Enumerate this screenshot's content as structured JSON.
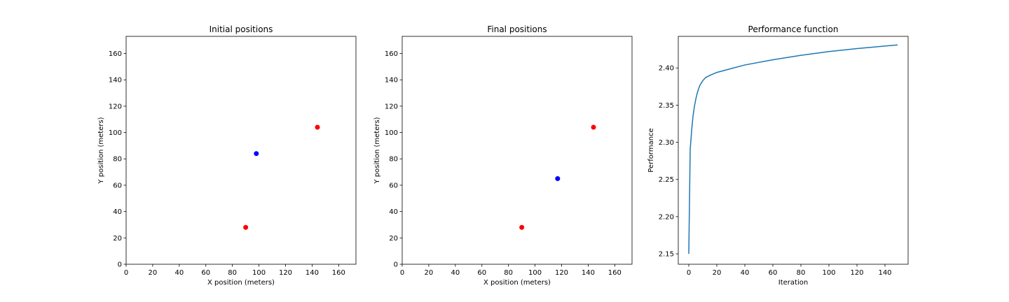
{
  "chart_data": [
    {
      "type": "scatter",
      "title": "Initial positions",
      "xlabel": "X position (meters)",
      "ylabel": "Y position (meters)",
      "xlim": [
        0,
        173
      ],
      "ylim": [
        0,
        173
      ],
      "xticks": [
        0,
        20,
        40,
        60,
        80,
        100,
        120,
        140,
        160
      ],
      "yticks": [
        0,
        20,
        40,
        60,
        80,
        100,
        120,
        140,
        160
      ],
      "points": [
        {
          "x": 90,
          "y": 28,
          "color": "#ff0000"
        },
        {
          "x": 144,
          "y": 104,
          "color": "#ff0000"
        },
        {
          "x": 98,
          "y": 84,
          "color": "#0000ff"
        }
      ]
    },
    {
      "type": "scatter",
      "title": "Final positions",
      "xlabel": "X position (meters)",
      "ylabel": "Y position (meters)",
      "xlim": [
        0,
        173
      ],
      "ylim": [
        0,
        173
      ],
      "xticks": [
        0,
        20,
        40,
        60,
        80,
        100,
        120,
        140,
        160
      ],
      "yticks": [
        0,
        20,
        40,
        60,
        80,
        100,
        120,
        140,
        160
      ],
      "points": [
        {
          "x": 90,
          "y": 28,
          "color": "#ff0000"
        },
        {
          "x": 144,
          "y": 104,
          "color": "#ff0000"
        },
        {
          "x": 117,
          "y": 65,
          "color": "#0000ff"
        }
      ]
    },
    {
      "type": "line",
      "title": "Performance function",
      "xlabel": "Iteration",
      "ylabel": "Performance",
      "xlim": [
        -7.5,
        156.5
      ],
      "ylim": [
        2.136,
        2.4425
      ],
      "xticks": [
        0,
        20,
        40,
        60,
        80,
        100,
        120,
        140
      ],
      "yticks": [
        2.15,
        2.2,
        2.25,
        2.3,
        2.35,
        2.4
      ],
      "ytick_labels": [
        "2.15",
        "2.20",
        "2.25",
        "2.30",
        "2.35",
        "2.40"
      ],
      "color": "#1f77b4",
      "x": [
        0,
        1,
        2,
        3,
        4,
        5,
        6,
        7,
        8,
        10,
        12,
        15,
        20,
        30,
        40,
        60,
        80,
        100,
        120,
        149
      ],
      "y": [
        2.15,
        2.29,
        2.315,
        2.335,
        2.348,
        2.358,
        2.366,
        2.372,
        2.377,
        2.383,
        2.387,
        2.39,
        2.394,
        2.399,
        2.404,
        2.411,
        2.417,
        2.422,
        2.426,
        2.431
      ]
    }
  ]
}
